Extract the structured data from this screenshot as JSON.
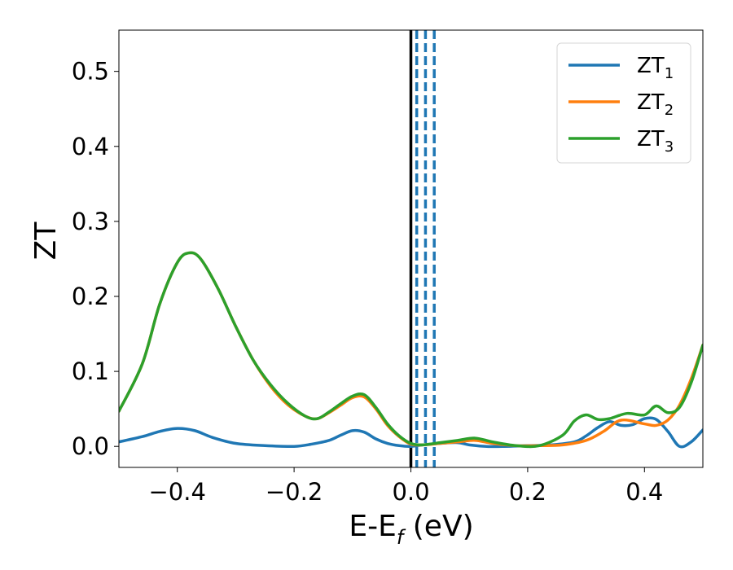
{
  "chart_data": {
    "type": "line",
    "xlabel": "E-E",
    "xlabel_subscript": "f",
    "xlabel_unit": " (eV)",
    "ylabel": "ZT",
    "xlim": [
      -0.5,
      0.5
    ],
    "ylim": [
      -0.028,
      0.555
    ],
    "xticks": [
      -0.4,
      -0.2,
      0.0,
      0.2,
      0.4
    ],
    "xtick_labels": [
      "−0.4",
      "−0.2",
      "0.0",
      "0.2",
      "0.4"
    ],
    "yticks": [
      0.0,
      0.1,
      0.2,
      0.3,
      0.4,
      0.5
    ],
    "ytick_labels": [
      "0.0",
      "0.1",
      "0.2",
      "0.3",
      "0.4",
      "0.5"
    ],
    "grid": false,
    "legend_position": "top-right",
    "fermi_line": {
      "x": 0.0,
      "color": "#000000"
    },
    "dashed_lines": {
      "x": [
        0.01,
        0.025,
        0.04
      ],
      "color": "#1f77b4"
    },
    "series": [
      {
        "name": "ZT",
        "subscript": "1",
        "color": "#1f77b4",
        "x": [
          -0.5,
          -0.46,
          -0.43,
          -0.4,
          -0.37,
          -0.34,
          -0.3,
          -0.25,
          -0.2,
          -0.17,
          -0.14,
          -0.12,
          -0.1,
          -0.08,
          -0.06,
          -0.04,
          -0.02,
          0.0,
          0.02,
          0.05,
          0.08,
          0.1,
          0.13,
          0.16,
          0.2,
          0.24,
          0.28,
          0.3,
          0.32,
          0.34,
          0.36,
          0.38,
          0.4,
          0.42,
          0.44,
          0.46,
          0.48,
          0.5
        ],
        "y": [
          0.006,
          0.013,
          0.02,
          0.024,
          0.021,
          0.012,
          0.004,
          0.001,
          0.0,
          0.003,
          0.008,
          0.015,
          0.021,
          0.019,
          0.01,
          0.004,
          0.001,
          0.0,
          0.002,
          0.004,
          0.005,
          0.002,
          0.0,
          0.0,
          0.001,
          0.002,
          0.006,
          0.014,
          0.025,
          0.033,
          0.028,
          0.029,
          0.037,
          0.036,
          0.02,
          0.0,
          0.006,
          0.022
        ]
      },
      {
        "name": "ZT",
        "subscript": "2",
        "color": "#ff7f0e",
        "x": [
          -0.5,
          -0.46,
          -0.43,
          -0.4,
          -0.38,
          -0.36,
          -0.33,
          -0.3,
          -0.27,
          -0.24,
          -0.21,
          -0.18,
          -0.16,
          -0.14,
          -0.12,
          -0.1,
          -0.08,
          -0.06,
          -0.04,
          -0.02,
          0.0,
          0.02,
          0.05,
          0.08,
          0.11,
          0.14,
          0.18,
          0.22,
          0.26,
          0.3,
          0.33,
          0.36,
          0.4,
          0.42,
          0.44,
          0.46,
          0.48,
          0.5
        ],
        "y": [
          0.047,
          0.11,
          0.19,
          0.245,
          0.258,
          0.25,
          0.21,
          0.16,
          0.115,
          0.08,
          0.055,
          0.04,
          0.037,
          0.045,
          0.055,
          0.065,
          0.066,
          0.05,
          0.028,
          0.013,
          0.003,
          0.002,
          0.004,
          0.006,
          0.008,
          0.004,
          0.001,
          0.001,
          0.002,
          0.008,
          0.02,
          0.035,
          0.03,
          0.028,
          0.035,
          0.055,
          0.09,
          0.135
        ]
      },
      {
        "name": "ZT",
        "subscript": "3",
        "color": "#2ca02c",
        "x": [
          -0.5,
          -0.46,
          -0.43,
          -0.4,
          -0.38,
          -0.36,
          -0.33,
          -0.3,
          -0.27,
          -0.24,
          -0.21,
          -0.18,
          -0.16,
          -0.14,
          -0.12,
          -0.1,
          -0.08,
          -0.06,
          -0.04,
          -0.02,
          0.0,
          0.02,
          0.05,
          0.08,
          0.11,
          0.14,
          0.18,
          0.22,
          0.26,
          0.28,
          0.3,
          0.32,
          0.34,
          0.37,
          0.4,
          0.42,
          0.44,
          0.46,
          0.48,
          0.5
        ],
        "y": [
          0.047,
          0.11,
          0.19,
          0.245,
          0.258,
          0.25,
          0.21,
          0.16,
          0.115,
          0.082,
          0.057,
          0.04,
          0.037,
          0.046,
          0.057,
          0.067,
          0.069,
          0.052,
          0.03,
          0.014,
          0.004,
          0.002,
          0.005,
          0.008,
          0.011,
          0.006,
          0.001,
          0.001,
          0.015,
          0.034,
          0.042,
          0.036,
          0.037,
          0.044,
          0.042,
          0.054,
          0.045,
          0.052,
          0.085,
          0.135
        ]
      }
    ]
  }
}
